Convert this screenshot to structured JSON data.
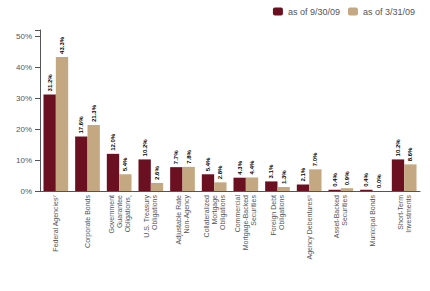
{
  "chart_data": {
    "type": "bar",
    "categories": [
      "Federal Agencies⁷",
      "Corporate Bonds",
      "Government\nGuarantee\nObligations¸",
      "U.S. Treasury\nObligations",
      "Adjustable Rate\nNon-Agency",
      "Collateralized\nMortgage\nObligations",
      "Commercial\nMortgage-Backed\nSecurities",
      "Foreign Debt\nObligations",
      "Agency Debentures⁹",
      "Asset-Backed\nSecurities",
      "Municipal Bonds",
      "Short-Term\nInvestments"
    ],
    "series": [
      {
        "name": "as of 9/30/09",
        "color": "#6b1020",
        "values": [
          31.2,
          17.6,
          12.0,
          10.2,
          7.7,
          5.4,
          4.3,
          3.1,
          2.1,
          0.4,
          0.4,
          10.2
        ],
        "value_labels": [
          "31.2%",
          "17.6%",
          "12.0%",
          "10.2%",
          "7.7%",
          "5.4%",
          "4.3%",
          "3.1%",
          "2.1%",
          "0.4%",
          "0.4%",
          "10.2%"
        ]
      },
      {
        "name": "as of 3/31/09",
        "color": "#c4a882",
        "values": [
          43.3,
          21.3,
          5.4,
          2.6,
          7.8,
          2.8,
          4.4,
          1.3,
          7.0,
          0.9,
          0.0,
          8.6
        ],
        "value_labels": [
          "43.3%",
          "21.3%",
          "5.4%",
          "2.6%",
          "7.8%",
          "2.8%",
          "4.4%",
          "1.3%",
          "7.0%",
          "0.9%",
          "0.0%",
          "8.6%"
        ]
      }
    ],
    "ylim": [
      0,
      52
    ],
    "yticks": [
      {
        "value": 0,
        "label": "0%"
      },
      {
        "value": 10,
        "label": "10%"
      },
      {
        "value": 20,
        "label": "20%"
      },
      {
        "value": 30,
        "label": "30%"
      },
      {
        "value": 40,
        "label": "40%"
      },
      {
        "value": 50,
        "label": "50%"
      }
    ],
    "grid": false,
    "legend": "upper right",
    "data_labels": true
  }
}
